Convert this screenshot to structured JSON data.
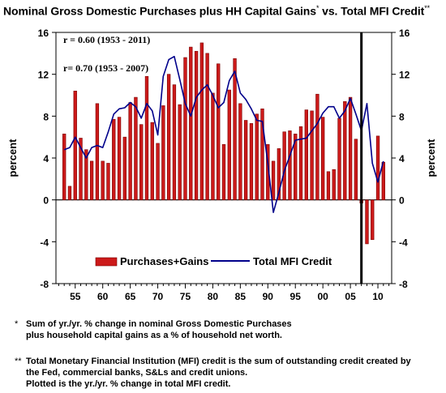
{
  "title": {
    "main": "Nominal Gross Domestic Purchases plus HH Capital Gains",
    "mark1": "*",
    "mid": " vs. Total MFI Credit",
    "mark2": "**"
  },
  "chart_data": {
    "type": "bar+line",
    "ylabel_left": "percent",
    "ylabel_right": "percent",
    "ylim": [
      -8,
      16
    ],
    "yticks": [
      -8,
      -4,
      0,
      4,
      8,
      12,
      16
    ],
    "x_range": [
      1951.5,
      2012.5
    ],
    "xtick_years": [
      1955,
      1960,
      1965,
      1970,
      1975,
      1980,
      1985,
      1990,
      1995,
      2000,
      2005,
      2010
    ],
    "xtick_labels": [
      "55",
      "60",
      "65",
      "70",
      "75",
      "80",
      "85",
      "90",
      "95",
      "00",
      "05",
      "10"
    ],
    "vertical_marker_year": 2007,
    "annotations": [
      "r = 0.60  (1953 - 2011)",
      "r= 0.70 (1953 - 2007)"
    ],
    "legend": {
      "placement": "bottom-center",
      "bar_label": "Purchases+Gains",
      "line_label": "Total MFI Credit"
    },
    "colors": {
      "bar": "#cc1a1a",
      "bar_edge": "#7a0000",
      "line": "#00008b",
      "marker": "#000000"
    },
    "series": [
      {
        "name": "Purchases+Gains",
        "kind": "bar",
        "x": [
          1953,
          1954,
          1955,
          1956,
          1957,
          1958,
          1959,
          1960,
          1961,
          1962,
          1963,
          1964,
          1965,
          1966,
          1967,
          1968,
          1969,
          1970,
          1971,
          1972,
          1973,
          1974,
          1975,
          1976,
          1977,
          1978,
          1979,
          1980,
          1981,
          1982,
          1983,
          1984,
          1985,
          1986,
          1987,
          1988,
          1989,
          1990,
          1991,
          1992,
          1993,
          1994,
          1995,
          1996,
          1997,
          1998,
          1999,
          2000,
          2001,
          2002,
          2003,
          2004,
          2005,
          2006,
          2007,
          2008,
          2009,
          2010,
          2011
        ],
        "values": [
          6.3,
          1.3,
          10.4,
          5.9,
          4.8,
          3.7,
          9.2,
          3.7,
          3.5,
          7.7,
          7.9,
          6.0,
          9.3,
          9.8,
          7.2,
          11.8,
          7.4,
          5.4,
          9.0,
          12.0,
          11.0,
          9.1,
          13.6,
          14.6,
          14.2,
          15.0,
          14.0,
          10.2,
          13.0,
          5.3,
          10.5,
          13.5,
          9.2,
          7.6,
          7.3,
          8.2,
          8.7,
          5.3,
          3.7,
          4.9,
          6.5,
          6.6,
          6.3,
          7.0,
          8.6,
          8.5,
          10.1,
          7.9,
          2.7,
          2.9,
          7.8,
          9.4,
          9.8,
          5.8,
          -0.3,
          -4.2,
          -3.8,
          6.1,
          3.6
        ]
      },
      {
        "name": "Total MFI Credit",
        "kind": "line",
        "x": [
          1953,
          1954,
          1955,
          1956,
          1957,
          1958,
          1959,
          1960,
          1961,
          1962,
          1963,
          1964,
          1965,
          1966,
          1967,
          1968,
          1969,
          1970,
          1971,
          1972,
          1973,
          1974,
          1975,
          1976,
          1977,
          1978,
          1979,
          1980,
          1981,
          1982,
          1983,
          1984,
          1985,
          1986,
          1987,
          1988,
          1989,
          1990,
          1991,
          1992,
          1993,
          1994,
          1995,
          1996,
          1997,
          1998,
          1999,
          2000,
          2001,
          2002,
          2003,
          2004,
          2005,
          2006,
          2007,
          2008,
          2009,
          2010,
          2011
        ],
        "values": [
          4.8,
          5.0,
          6.0,
          5.0,
          4.0,
          5.0,
          5.2,
          5.0,
          6.5,
          8.2,
          8.7,
          8.8,
          9.3,
          8.9,
          7.8,
          9.2,
          8.5,
          6.2,
          11.8,
          13.4,
          13.7,
          11.5,
          9.2,
          8.0,
          9.8,
          10.5,
          11.0,
          10.0,
          8.8,
          9.3,
          11.4,
          12.3,
          10.2,
          9.6,
          8.7,
          7.6,
          7.5,
          3.5,
          -1.2,
          0.7,
          2.8,
          4.2,
          5.7,
          5.8,
          5.9,
          6.6,
          7.3,
          8.3,
          8.9,
          8.9,
          7.8,
          8.5,
          9.7,
          8.2,
          6.6,
          9.2,
          3.5,
          1.7,
          3.7
        ]
      }
    ]
  },
  "footnotes": {
    "f1_mark": "*",
    "f1_line1": "Sum of yr./yr. % change in nominal Gross Domestic Purchases",
    "f1_line2": "plus household capital gains as a % of household net worth.",
    "f2_mark": "**",
    "f2_line1": "Total Monetary Financial Institution (MFI) credit is the sum of outstanding credit created by",
    "f2_line2": "the Fed, commercial banks, S&Ls and credit unions.",
    "f2_line3": "Plotted is the yr./yr. % change in total MFI credit."
  }
}
